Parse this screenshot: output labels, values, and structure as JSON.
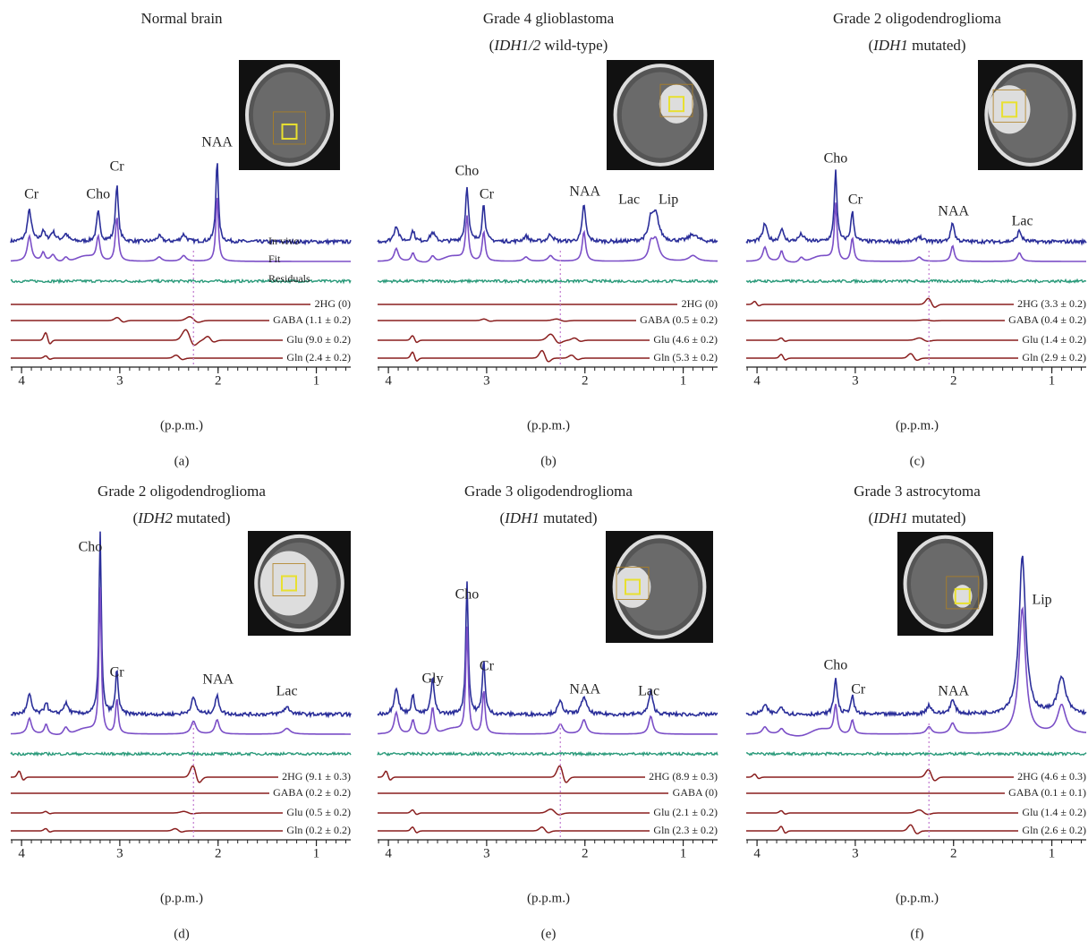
{
  "panels": [
    {
      "label": "(a)",
      "title": "Normal brain",
      "peak_labels": [
        "Cr",
        "Cho",
        "Cr",
        "NAA"
      ],
      "trace_labels": [
        "In vivo",
        "Fit",
        "Residuals"
      ],
      "metabolites": [
        "2HG (0)",
        "GABA (1.1 ± 0.2)",
        "Glu (9.0 ± 0.2)",
        "Gln (2.4 ± 0.2)"
      ],
      "xlim": [
        4.11,
        0.65
      ],
      "xticks": [
        4,
        3,
        2,
        1
      ],
      "xlabel": "(p.p.m.)"
    },
    {
      "label": "(b)",
      "title": "Grade 4 glioblastoma",
      "subtitle": [
        {
          "text": "(",
          "italic": false
        },
        {
          "text": "IDH1/2",
          "italic": true
        },
        {
          "text": " wild-type)",
          "italic": false
        }
      ],
      "peak_labels": [
        "Cho",
        "Cr",
        "NAA",
        "Lac",
        "Lip"
      ],
      "metabolites": [
        "2HG (0)",
        "GABA (0.5 ± 0.2)",
        "Glu (4.6 ± 0.2)",
        "Gln (5.3 ± 0.2)"
      ],
      "xlim": [
        4.11,
        0.65
      ],
      "xticks": [
        4,
        3,
        2,
        1
      ],
      "xlabel": "(p.p.m.)"
    },
    {
      "label": "(c)",
      "title": "Grade 2 oligodendroglioma",
      "subtitle": [
        {
          "text": "(",
          "italic": false
        },
        {
          "text": "IDH1",
          "italic": true
        },
        {
          "text": " mutated)",
          "italic": false
        }
      ],
      "peak_labels": [
        "Cho",
        "Cr",
        "NAA",
        "Lac"
      ],
      "metabolites": [
        "2HG (3.3 ± 0.2)",
        "GABA (0.4 ± 0.2)",
        "Glu (1.4 ± 0.2)",
        "Gln (2.9 ± 0.2)"
      ],
      "xlim": [
        4.11,
        0.65
      ],
      "xticks": [
        4,
        3,
        2,
        1
      ],
      "xlabel": "(p.p.m.)"
    },
    {
      "label": "(d)",
      "title": "Grade 2 oligodendroglioma",
      "subtitle": [
        {
          "text": "(",
          "italic": false
        },
        {
          "text": "IDH2",
          "italic": true
        },
        {
          "text": " mutated)",
          "italic": false
        }
      ],
      "peak_labels": [
        "Cho",
        "Cr",
        "NAA",
        "Lac"
      ],
      "metabolites": [
        "2HG (9.1 ± 0.3)",
        "GABA (0.2 ± 0.2)",
        "Glu (0.5 ± 0.2)",
        "Gln (0.2 ± 0.2)"
      ],
      "xlim": [
        4.11,
        0.65
      ],
      "xticks": [
        4,
        3,
        2,
        1
      ],
      "xlabel": "(p.p.m.)"
    },
    {
      "label": "(e)",
      "title": "Grade 3 oligodendroglioma",
      "subtitle": [
        {
          "text": "(",
          "italic": false
        },
        {
          "text": "IDH1",
          "italic": true
        },
        {
          "text": " mutated)",
          "italic": false
        }
      ],
      "peak_labels": [
        "Gly",
        "Cho",
        "Cr",
        "NAA",
        "Lac"
      ],
      "metabolites": [
        "2HG (8.9 ± 0.3)",
        "GABA (0)",
        "Glu (2.1 ± 0.2)",
        "Gln (2.3 ± 0.2)"
      ],
      "xlim": [
        4.11,
        0.65
      ],
      "xticks": [
        4,
        3,
        2,
        1
      ],
      "xlabel": "(p.p.m.)"
    },
    {
      "label": "(f)",
      "title": "Grade 3 astrocytoma",
      "subtitle": [
        {
          "text": "(",
          "italic": false
        },
        {
          "text": "IDH1",
          "italic": true
        },
        {
          "text": " mutated)",
          "italic": false
        }
      ],
      "peak_labels": [
        "Cho",
        "Cr",
        "NAA",
        "Lip"
      ],
      "metabolites": [
        "2HG (4.6 ± 0.3)",
        "GABA (0.1 ± 0.1)",
        "Glu (1.4 ± 0.2)",
        "Gln (2.6 ± 0.2)"
      ],
      "xlim": [
        4.11,
        0.65
      ],
      "xticks": [
        4,
        3,
        2,
        1
      ],
      "xlabel": "(p.p.m.)"
    }
  ]
}
